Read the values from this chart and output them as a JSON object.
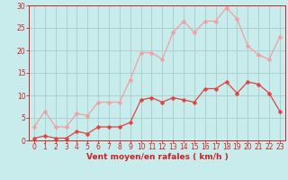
{
  "x": [
    0,
    1,
    2,
    3,
    4,
    5,
    6,
    7,
    8,
    9,
    10,
    11,
    12,
    13,
    14,
    15,
    16,
    17,
    18,
    19,
    20,
    21,
    22,
    23
  ],
  "y_mean": [
    0.5,
    1.0,
    0.5,
    0.5,
    2.0,
    1.5,
    3.0,
    3.0,
    3.0,
    4.0,
    9.0,
    9.5,
    8.5,
    9.5,
    9.0,
    8.5,
    11.5,
    11.5,
    13.0,
    10.5,
    13.0,
    12.5,
    10.5,
    6.5
  ],
  "y_gust": [
    3.0,
    6.5,
    3.0,
    3.0,
    6.0,
    5.5,
    8.5,
    8.5,
    8.5,
    13.5,
    19.5,
    19.5,
    18.0,
    24.0,
    26.5,
    24.0,
    26.5,
    26.5,
    29.5,
    27.0,
    21.0,
    19.0,
    18.0,
    23.0
  ],
  "mean_color": "#dd4444",
  "gust_color": "#f0a0a0",
  "bg_color": "#c8ecec",
  "grid_color": "#a8cccc",
  "axis_color": "#cc2222",
  "xlabel": "Vent moyen/en rafales ( km/h )",
  "ylim": [
    0,
    30
  ],
  "xlim": [
    -0.5,
    23.5
  ],
  "yticks": [
    0,
    5,
    10,
    15,
    20,
    25,
    30
  ],
  "xticks": [
    0,
    1,
    2,
    3,
    4,
    5,
    6,
    7,
    8,
    9,
    10,
    11,
    12,
    13,
    14,
    15,
    16,
    17,
    18,
    19,
    20,
    21,
    22,
    23
  ],
  "tick_fontsize": 5.5,
  "xlabel_fontsize": 6.5,
  "marker_size": 2.5,
  "linewidth": 0.9
}
